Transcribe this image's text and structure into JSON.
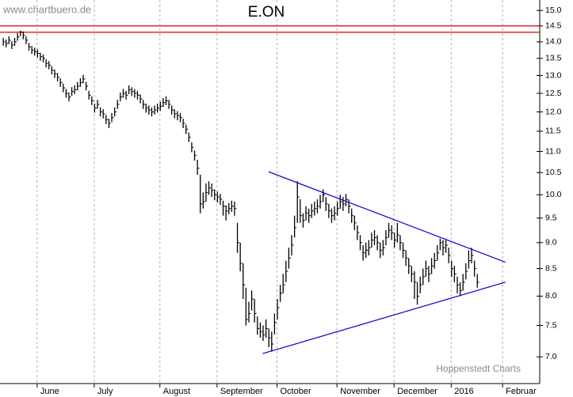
{
  "chart_data": {
    "type": "hlc",
    "title": "E.ON",
    "source": "www.chartbuero.de",
    "credit": "Hoppenstedt Charts",
    "color": "#000000",
    "log_scale": true,
    "grid_x": true,
    "high": [
      14.12,
      14.07,
      14.17,
      14.02,
      14.12,
      14.27,
      14.35,
      14.32,
      14.17,
      13.97,
      13.87,
      13.82,
      13.77,
      13.67,
      13.62,
      13.47,
      13.42,
      13.27,
      13.17,
      13.07,
      12.92,
      12.77,
      12.62,
      12.52,
      12.67,
      12.72,
      12.82,
      12.92,
      13.02,
      12.82,
      12.57,
      12.42,
      12.22,
      12.32,
      12.12,
      12.07,
      11.92,
      11.82,
      11.97,
      12.12,
      12.32,
      12.52,
      12.62,
      12.57,
      12.72,
      12.67,
      12.62,
      12.57,
      12.47,
      12.32,
      12.22,
      12.17,
      12.12,
      12.17,
      12.22,
      12.27,
      12.37,
      12.42,
      12.32,
      12.17,
      12.07,
      12.02,
      11.97,
      11.82,
      11.67,
      11.47,
      11.22,
      11.02,
      10.8,
      10.45,
      10.05,
      10.25,
      10.3,
      10.25,
      10.12,
      10.07,
      10.02,
      9.87,
      9.77,
      9.82,
      9.87,
      9.85,
      9.4,
      9.0,
      8.6,
      8.15,
      7.9,
      8.1,
      7.95,
      7.65,
      7.55,
      7.5,
      7.6,
      7.45,
      7.4,
      7.7,
      7.95,
      8.2,
      8.4,
      8.65,
      8.9,
      9.15,
      9.55,
      10.3,
      9.9,
      9.6,
      9.75,
      9.7,
      9.8,
      9.85,
      9.9,
      10.0,
      10.12,
      9.95,
      9.8,
      9.7,
      9.75,
      9.85,
      10.0,
      9.95,
      10.02,
      9.9,
      9.7,
      9.55,
      9.35,
      9.15,
      8.95,
      9.0,
      9.05,
      9.2,
      9.25,
      9.15,
      9.0,
      9.05,
      9.25,
      9.4,
      9.35,
      9.2,
      9.4,
      9.15,
      9.0,
      8.85,
      8.7,
      8.55,
      8.45,
      8.25,
      8.35,
      8.5,
      8.65,
      8.55,
      8.7,
      8.8,
      8.95,
      9.08,
      9.05,
      9.05,
      8.9,
      8.65,
      8.55,
      8.35,
      8.25,
      8.4,
      8.6,
      8.85,
      8.9,
      8.65,
      8.4
    ],
    "low": [
      13.88,
      13.83,
      13.93,
      13.78,
      13.88,
      14.03,
      14.18,
      14.08,
      13.93,
      13.73,
      13.63,
      13.58,
      13.53,
      13.43,
      13.38,
      13.23,
      13.18,
      13.03,
      12.93,
      12.83,
      12.68,
      12.53,
      12.38,
      12.28,
      12.43,
      12.48,
      12.58,
      12.68,
      12.78,
      12.58,
      12.33,
      12.18,
      11.98,
      12.08,
      11.88,
      11.83,
      11.68,
      11.58,
      11.73,
      11.88,
      12.08,
      12.28,
      12.38,
      12.33,
      12.48,
      12.43,
      12.38,
      12.33,
      12.23,
      12.08,
      11.98,
      11.93,
      11.88,
      11.93,
      11.98,
      12.03,
      12.13,
      12.18,
      12.08,
      11.93,
      11.83,
      11.78,
      11.73,
      11.58,
      11.43,
      11.23,
      10.98,
      10.78,
      10.45,
      9.6,
      9.7,
      9.85,
      10.0,
      9.95,
      9.88,
      9.83,
      9.78,
      9.55,
      9.45,
      9.58,
      9.63,
      9.55,
      8.8,
      8.45,
      7.95,
      7.5,
      7.55,
      7.75,
      7.55,
      7.35,
      7.3,
      7.25,
      7.3,
      7.15,
      7.08,
      7.35,
      7.6,
      7.9,
      8.05,
      8.25,
      8.5,
      8.75,
      9.1,
      9.4,
      9.4,
      9.3,
      9.45,
      9.4,
      9.5,
      9.55,
      9.6,
      9.7,
      9.85,
      9.65,
      9.5,
      9.4,
      9.45,
      9.55,
      9.7,
      9.65,
      9.75,
      9.6,
      9.4,
      9.25,
      9.05,
      8.85,
      8.65,
      8.7,
      8.75,
      8.9,
      8.95,
      8.85,
      8.7,
      8.75,
      8.95,
      9.1,
      9.05,
      8.9,
      9.0,
      8.85,
      8.7,
      8.55,
      8.4,
      8.25,
      7.95,
      7.85,
      8.05,
      8.2,
      8.35,
      8.25,
      8.4,
      8.5,
      8.65,
      8.85,
      8.75,
      8.8,
      8.6,
      8.35,
      8.25,
      8.05,
      8.0,
      8.1,
      8.3,
      8.5,
      8.6,
      8.35,
      8.15
    ],
    "close": [
      14.0,
      13.95,
      14.05,
      13.9,
      14.0,
      14.15,
      14.3,
      14.2,
      14.05,
      13.85,
      13.75,
      13.7,
      13.65,
      13.55,
      13.5,
      13.35,
      13.3,
      13.15,
      13.05,
      12.95,
      12.8,
      12.65,
      12.5,
      12.4,
      12.55,
      12.6,
      12.7,
      12.8,
      12.9,
      12.7,
      12.45,
      12.3,
      12.1,
      12.2,
      12.0,
      11.95,
      11.8,
      11.7,
      11.85,
      12.0,
      12.2,
      12.4,
      12.5,
      12.45,
      12.6,
      12.55,
      12.5,
      12.45,
      12.35,
      12.2,
      12.1,
      12.05,
      12.0,
      12.05,
      12.1,
      12.15,
      12.25,
      12.3,
      12.2,
      12.05,
      11.95,
      11.9,
      11.85,
      11.7,
      11.55,
      11.35,
      11.1,
      10.9,
      10.6,
      9.8,
      9.85,
      10.05,
      10.15,
      10.1,
      10.0,
      9.95,
      9.9,
      9.75,
      9.65,
      9.7,
      9.75,
      9.7,
      9.0,
      8.6,
      8.2,
      7.6,
      7.7,
      7.95,
      7.7,
      7.45,
      7.4,
      7.35,
      7.45,
      7.3,
      7.2,
      7.55,
      7.8,
      8.05,
      8.2,
      8.45,
      8.7,
      8.95,
      9.3,
      9.95,
      9.55,
      9.45,
      9.6,
      9.55,
      9.65,
      9.7,
      9.75,
      9.85,
      10.0,
      9.8,
      9.65,
      9.55,
      9.6,
      9.7,
      9.85,
      9.8,
      9.9,
      9.75,
      9.55,
      9.4,
      9.2,
      9.0,
      8.8,
      8.85,
      8.9,
      9.05,
      9.1,
      9.0,
      8.85,
      8.9,
      9.1,
      9.25,
      9.2,
      9.05,
      9.15,
      9.0,
      8.85,
      8.7,
      8.55,
      8.4,
      8.25,
      8.0,
      8.2,
      8.35,
      8.5,
      8.4,
      8.55,
      8.65,
      8.8,
      9.0,
      8.9,
      8.95,
      8.75,
      8.5,
      8.4,
      8.2,
      8.1,
      8.25,
      8.45,
      8.65,
      8.75,
      8.5,
      8.25
    ],
    "xlim": [
      -1,
      188
    ],
    "xticks": [
      {
        "value": 12,
        "label": "June"
      },
      {
        "value": 32,
        "label": "July"
      },
      {
        "value": 55,
        "label": "August"
      },
      {
        "value": 75,
        "label": "September"
      },
      {
        "value": 96,
        "label": "October"
      },
      {
        "value": 117,
        "label": "November"
      },
      {
        "value": 137,
        "label": "December"
      },
      {
        "value": 157,
        "label": "2016"
      },
      {
        "value": 175,
        "label": "Februar"
      }
    ],
    "ylim": [
      6.6,
      15.35
    ],
    "yticks": [
      {
        "value": 7,
        "label": "7.0"
      },
      7.5,
      {
        "value": 8,
        "label": "8.0"
      },
      8.5,
      {
        "value": 9,
        "label": "9.0"
      },
      9.5,
      {
        "value": 10,
        "label": "10.0"
      },
      10.5,
      {
        "value": 11,
        "label": "11.0"
      },
      11.5,
      {
        "value": 12,
        "label": "12.0"
      },
      12.5,
      {
        "value": 13,
        "label": "13.0"
      },
      13.5,
      {
        "value": 14,
        "label": "14.0"
      },
      14.5,
      {
        "value": 15,
        "label": "15.0"
      }
    ],
    "hlines": {
      "color": "#e00000",
      "values": [
        14.5,
        14.3
      ]
    },
    "trendlines": {
      "color": "#0000cc",
      "lines": [
        {
          "x": [
            93,
            176
          ],
          "y": [
            10.52,
            8.62
          ]
        },
        {
          "x": [
            91,
            176
          ],
          "y": [
            7.05,
            8.25
          ]
        }
      ]
    }
  }
}
